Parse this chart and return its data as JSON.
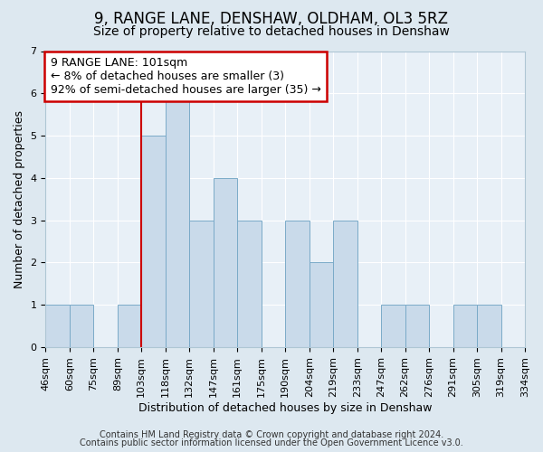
{
  "title": "9, RANGE LANE, DENSHAW, OLDHAM, OL3 5RZ",
  "subtitle": "Size of property relative to detached houses in Denshaw",
  "xlabel": "Distribution of detached houses by size in Denshaw",
  "ylabel": "Number of detached properties",
  "tick_labels": [
    "46sqm",
    "60sqm",
    "75sqm",
    "89sqm",
    "103sqm",
    "118sqm",
    "132sqm",
    "147sqm",
    "161sqm",
    "175sqm",
    "190sqm",
    "204sqm",
    "219sqm",
    "233sqm",
    "247sqm",
    "262sqm",
    "276sqm",
    "291sqm",
    "305sqm",
    "319sqm",
    "334sqm"
  ],
  "bar_values": [
    1,
    1,
    0,
    1,
    5,
    6,
    3,
    4,
    3,
    0,
    3,
    2,
    3,
    0,
    1,
    1,
    0,
    1,
    1,
    0
  ],
  "bar_color": "#c9daea",
  "bar_edge_color": "#7aaac8",
  "vline_pos": 4,
  "vline_color": "#cc0000",
  "ylim": [
    0,
    7
  ],
  "yticks": [
    0,
    1,
    2,
    3,
    4,
    5,
    6,
    7
  ],
  "annotation_text": "9 RANGE LANE: 101sqm\n← 8% of detached houses are smaller (3)\n92% of semi-detached houses are larger (35) →",
  "annotation_box_facecolor": "#ffffff",
  "annotation_box_edgecolor": "#cc0000",
  "footer_line1": "Contains HM Land Registry data © Crown copyright and database right 2024.",
  "footer_line2": "Contains public sector information licensed under the Open Government Licence v3.0.",
  "fig_facecolor": "#dde8f0",
  "ax_facecolor": "#e8f0f7",
  "title_fontsize": 12,
  "subtitle_fontsize": 10,
  "axis_label_fontsize": 9,
  "tick_fontsize": 8,
  "footer_fontsize": 7,
  "annotation_fontsize": 9
}
